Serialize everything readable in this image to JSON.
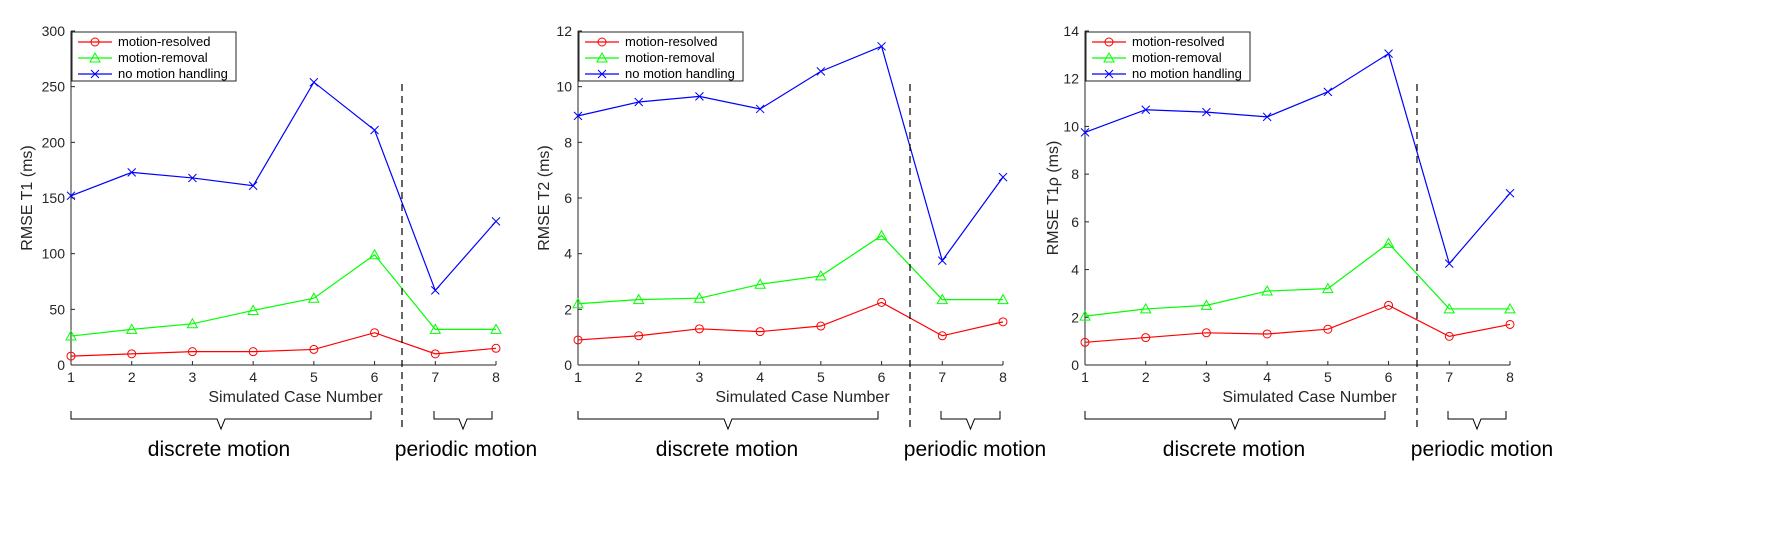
{
  "chart_data": [
    {
      "type": "line",
      "xlabel": "Simulated Case Number",
      "ylabel": "RMSE T1 (ms)",
      "x": [
        1,
        2,
        3,
        4,
        5,
        6,
        7,
        8
      ],
      "xlim": [
        1,
        8
      ],
      "ylim": [
        0,
        300
      ],
      "yticks": [
        0,
        50,
        100,
        150,
        200,
        250,
        300
      ],
      "divider_x": 6.5,
      "series": [
        {
          "name": "motion-resolved",
          "color": "#ff0000",
          "marker": "circle",
          "values": [
            8,
            10,
            12,
            12,
            14,
            29,
            10,
            15
          ]
        },
        {
          "name": "motion-removal",
          "color": "#00ff00",
          "marker": "triangle",
          "values": [
            26,
            32,
            37,
            49,
            60,
            99,
            32,
            32
          ]
        },
        {
          "name": "no motion handling",
          "color": "#0000ff",
          "marker": "x",
          "values": [
            152,
            173,
            168,
            161,
            254,
            211,
            67,
            129
          ]
        }
      ],
      "legend": "top-left",
      "brace_labels": [
        "discrete motion",
        "periodic motion"
      ]
    },
    {
      "type": "line",
      "xlabel": "Simulated Case Number",
      "ylabel": "RMSE T2 (ms)",
      "x": [
        1,
        2,
        3,
        4,
        5,
        6,
        7,
        8
      ],
      "xlim": [
        1,
        8
      ],
      "ylim": [
        0,
        12
      ],
      "yticks": [
        0,
        2,
        4,
        6,
        8,
        10,
        12
      ],
      "divider_x": 6.5,
      "series": [
        {
          "name": "motion-resolved",
          "color": "#ff0000",
          "marker": "circle",
          "values": [
            0.9,
            1.05,
            1.3,
            1.2,
            1.4,
            2.25,
            1.05,
            1.55
          ]
        },
        {
          "name": "motion-removal",
          "color": "#00ff00",
          "marker": "triangle",
          "values": [
            2.2,
            2.35,
            2.4,
            2.9,
            3.2,
            4.65,
            2.35,
            2.35
          ]
        },
        {
          "name": "no motion handling",
          "color": "#0000ff",
          "marker": "x",
          "values": [
            8.95,
            9.45,
            9.65,
            9.2,
            10.55,
            11.45,
            3.75,
            6.75
          ]
        }
      ],
      "legend": "top-left",
      "brace_labels": [
        "discrete motion",
        "periodic motion"
      ]
    },
    {
      "type": "line",
      "xlabel": "Simulated Case Number",
      "ylabel": "RMSE T1ρ (ms)",
      "x": [
        1,
        2,
        3,
        4,
        5,
        6,
        7,
        8
      ],
      "xlim": [
        1,
        8
      ],
      "ylim": [
        0,
        14
      ],
      "yticks": [
        0,
        2,
        4,
        6,
        8,
        10,
        12,
        14
      ],
      "divider_x": 6.5,
      "series": [
        {
          "name": "motion-resolved",
          "color": "#ff0000",
          "marker": "circle",
          "values": [
            0.95,
            1.15,
            1.35,
            1.3,
            1.5,
            2.5,
            1.2,
            1.7
          ]
        },
        {
          "name": "motion-removal",
          "color": "#00ff00",
          "marker": "triangle",
          "values": [
            2.05,
            2.35,
            2.5,
            3.1,
            3.2,
            5.1,
            2.35,
            2.35
          ]
        },
        {
          "name": "no motion handling",
          "color": "#0000ff",
          "marker": "x",
          "values": [
            9.75,
            10.7,
            10.6,
            10.4,
            11.45,
            13.05,
            4.25,
            7.2
          ]
        }
      ],
      "legend": "top-left",
      "brace_labels": [
        "discrete motion",
        "periodic motion"
      ]
    }
  ]
}
